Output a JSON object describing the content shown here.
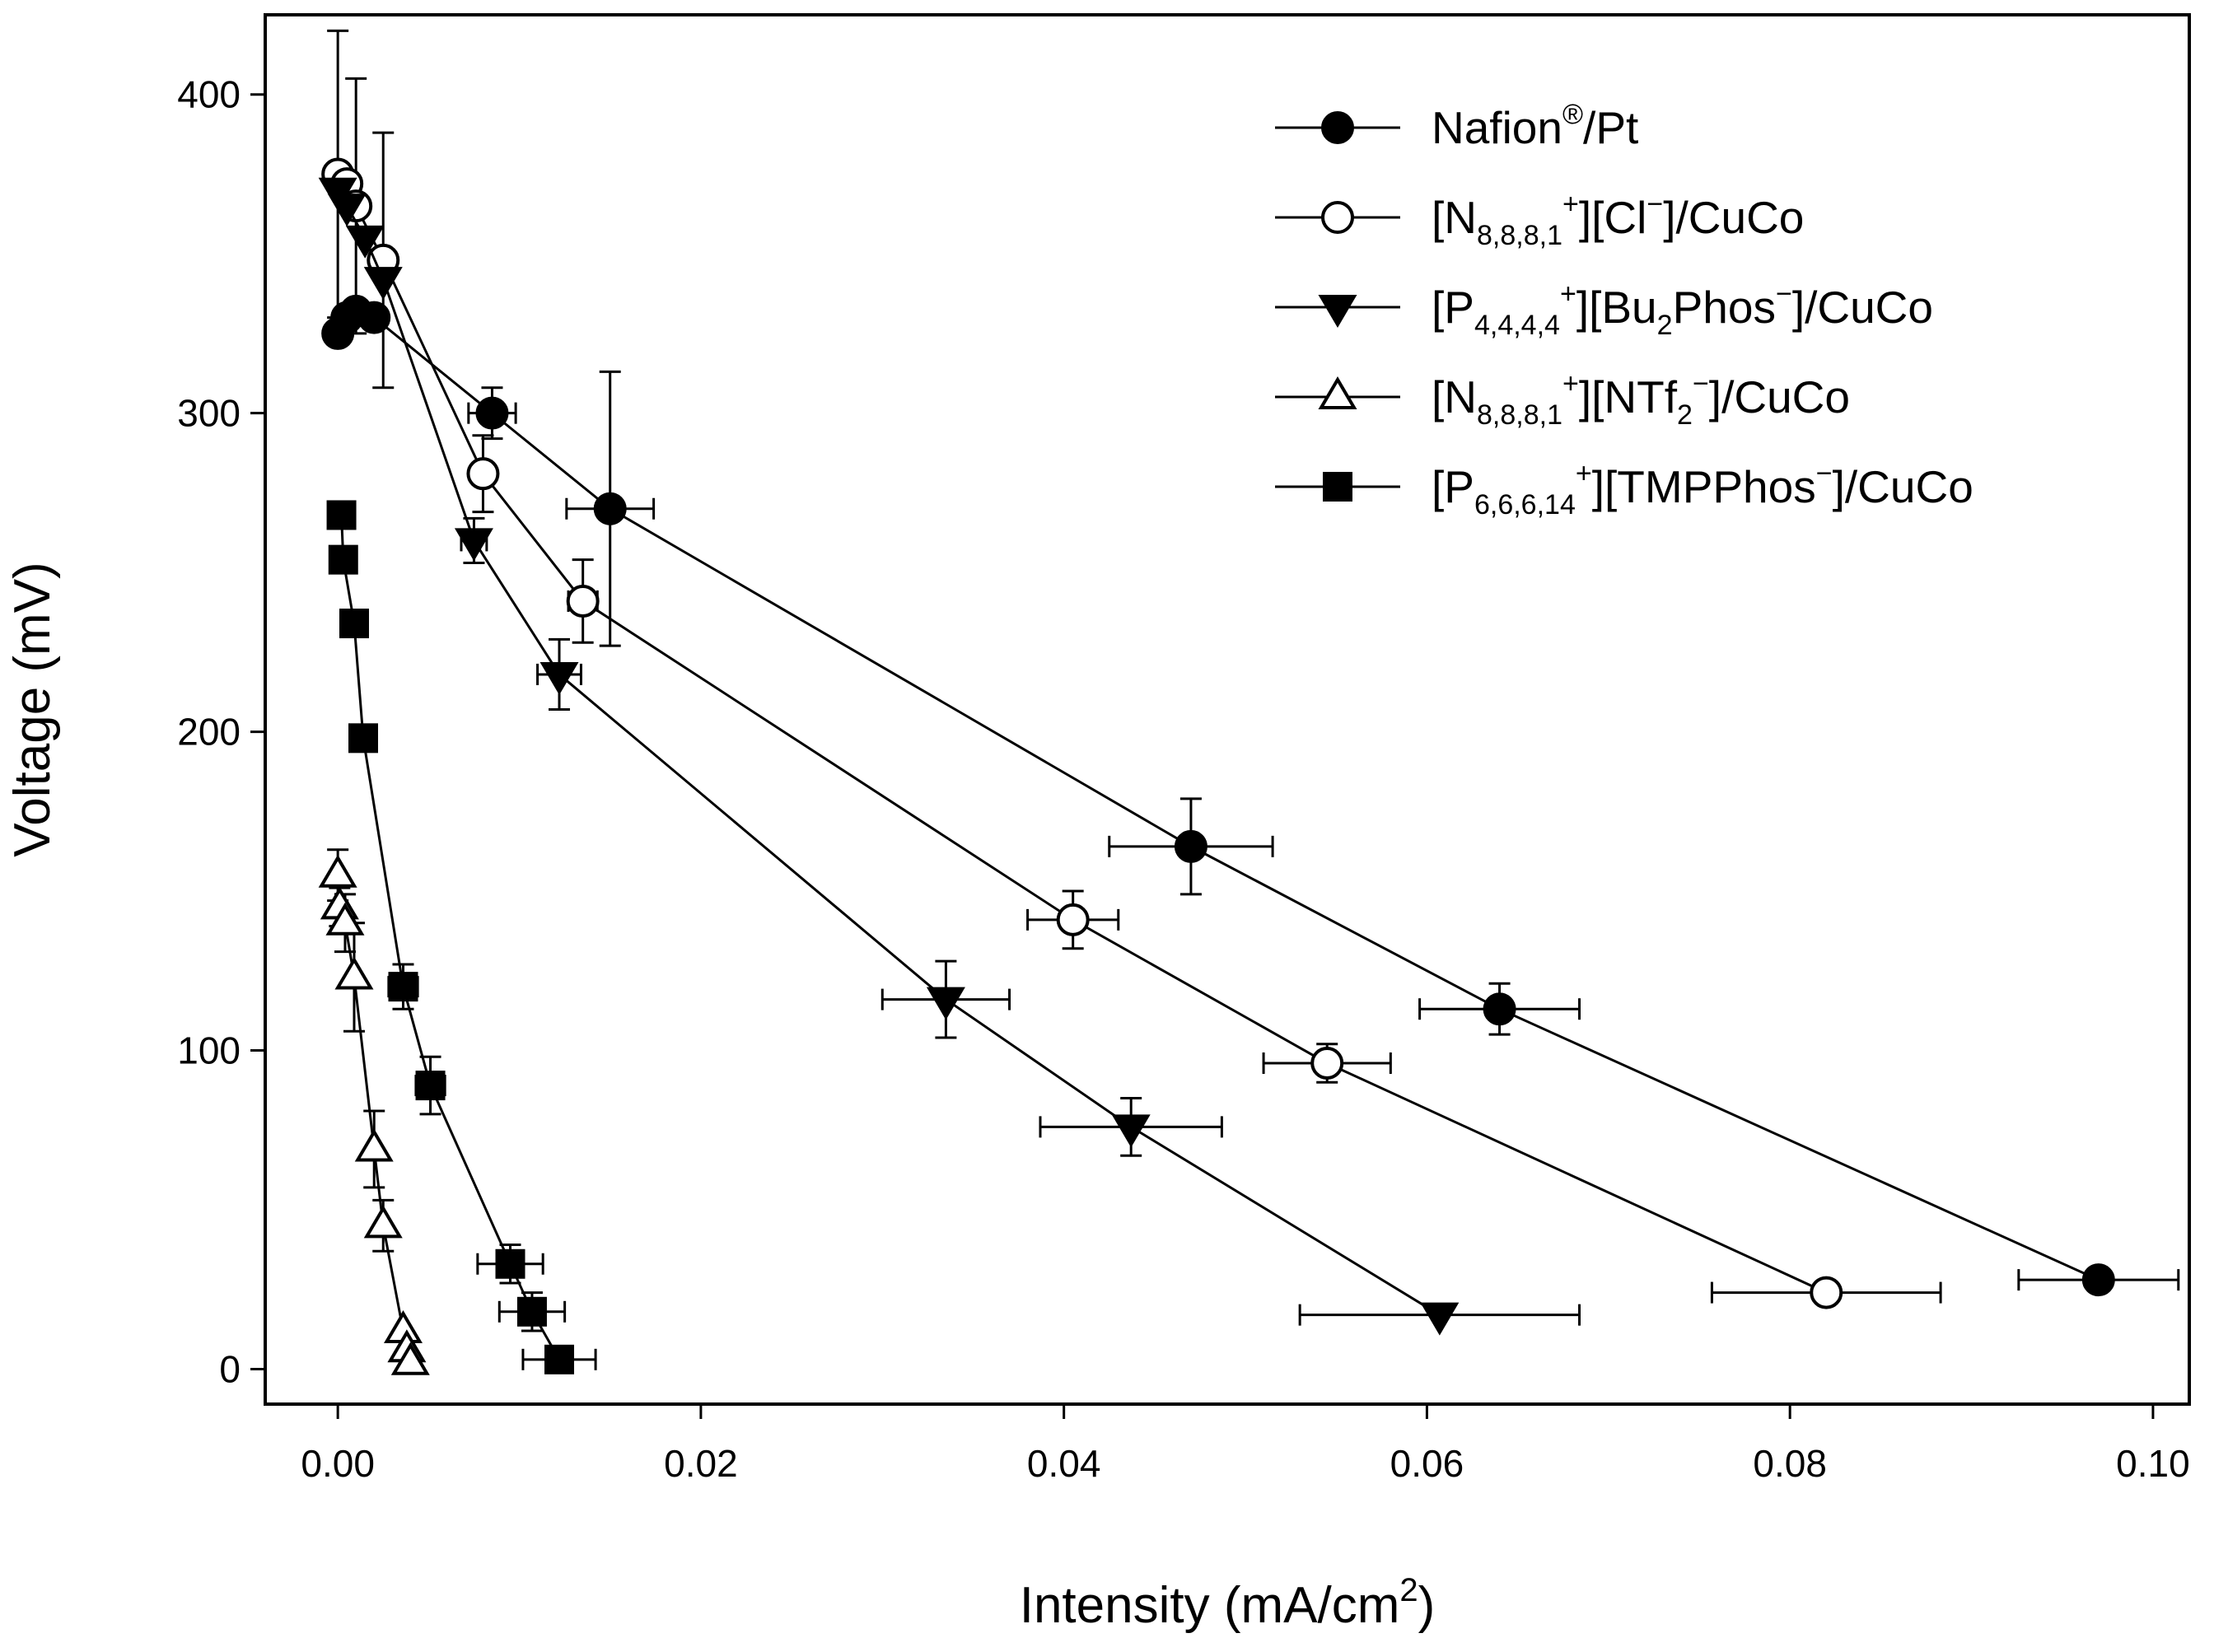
{
  "chart_data": {
    "type": "scatter",
    "xlabel": {
      "main": "Intensity (mA/cm",
      "sup": "2",
      "end": ")"
    },
    "ylabel": "Voltage (mV)",
    "xlim": [
      -0.004,
      0.102
    ],
    "ylim": [
      -11,
      425
    ],
    "xticks": [
      0.0,
      0.02,
      0.04,
      0.06,
      0.08,
      0.1
    ],
    "xtick_labels": [
      "0.00",
      "0.02",
      "0.04",
      "0.06",
      "0.08",
      "0.10"
    ],
    "yticks": [
      0,
      100,
      200,
      300,
      400
    ],
    "ytick_labels": [
      "0",
      "100",
      "200",
      "300",
      "400"
    ],
    "grid": false,
    "legend_position": "top-right",
    "series": [
      {
        "name": "Nafion®/Pt",
        "legend": [
          {
            "t": "Nafion"
          },
          {
            "t": "®",
            "s": "sup"
          },
          {
            "t": "/Pt"
          }
        ],
        "marker": "circle-filled",
        "points": [
          [
            0.0,
            325,
            0,
            0
          ],
          [
            0.0005,
            330,
            0,
            0
          ],
          [
            0.001,
            332,
            0,
            0
          ],
          [
            0.002,
            330,
            0,
            0
          ],
          [
            0.0085,
            300,
            0.0013,
            8
          ],
          [
            0.015,
            270,
            0.0024,
            43
          ],
          [
            0.047,
            164,
            0.0045,
            15
          ],
          [
            0.064,
            113,
            0.0044,
            8
          ],
          [
            0.097,
            28,
            0.0044,
            0
          ]
        ]
      },
      {
        "name": "[N8,8,8,1+][Cl−]/CuCo",
        "legend": [
          {
            "t": "[N"
          },
          {
            "t": "8,8,8,1",
            "s": "sub"
          },
          {
            "t": "+",
            "s": "sup"
          },
          {
            "t": "][Cl"
          },
          {
            "t": "−",
            "s": "sup"
          },
          {
            "t": "]/CuCo"
          }
        ],
        "marker": "circle-open",
        "points": [
          [
            0.0,
            375,
            0,
            45
          ],
          [
            0.0005,
            372,
            0,
            0
          ],
          [
            0.001,
            365,
            0,
            40
          ],
          [
            0.0025,
            348,
            0,
            40
          ],
          [
            0.008,
            281,
            0,
            12
          ],
          [
            0.0135,
            241,
            0.0008,
            13
          ],
          [
            0.0405,
            141,
            0.0025,
            9
          ],
          [
            0.0545,
            96,
            0.0035,
            6
          ],
          [
            0.082,
            24,
            0.0063,
            0
          ]
        ]
      },
      {
        "name": "[P4,4,4,4+][Bu2Phos−]/CuCo",
        "legend": [
          {
            "t": "[P"
          },
          {
            "t": "4,4,4,4",
            "s": "sub"
          },
          {
            "t": "+",
            "s": "sup"
          },
          {
            "t": "][Bu"
          },
          {
            "t": "2",
            "s": "sub"
          },
          {
            "t": "Phos"
          },
          {
            "t": "−",
            "s": "sup"
          },
          {
            "t": "]/CuCo"
          }
        ],
        "marker": "triangle-down-filled",
        "points": [
          [
            0.0,
            370,
            0,
            0
          ],
          [
            0.0005,
            365,
            0,
            0
          ],
          [
            0.0015,
            355,
            0,
            0
          ],
          [
            0.0025,
            342,
            0,
            0
          ],
          [
            0.0075,
            260,
            0.0007,
            7
          ],
          [
            0.0122,
            218,
            0.0012,
            11
          ],
          [
            0.0335,
            116,
            0.0035,
            12
          ],
          [
            0.0437,
            76,
            0.005,
            9
          ],
          [
            0.0607,
            17,
            0.0077,
            0
          ]
        ]
      },
      {
        "name": "[N8,8,8,1+][NTf2−]/CuCo",
        "legend": [
          {
            "t": "[N"
          },
          {
            "t": "8,8,8,1",
            "s": "sub"
          },
          {
            "t": "+",
            "s": "sup"
          },
          {
            "t": "][NTf"
          },
          {
            "t": "2",
            "s": "sub"
          },
          {
            "t": "−",
            "s": "sup"
          },
          {
            "t": "]/CuCo"
          }
        ],
        "marker": "triangle-up-open",
        "points": [
          [
            0.0,
            155,
            0,
            8
          ],
          [
            0.0001,
            145,
            0,
            6
          ],
          [
            0.0004,
            140,
            0,
            9
          ],
          [
            0.0009,
            123,
            0,
            17
          ],
          [
            0.002,
            69,
            0,
            12
          ],
          [
            0.0025,
            45,
            0,
            8
          ],
          [
            0.0036,
            12,
            0,
            0
          ],
          [
            0.0038,
            6,
            0,
            0
          ],
          [
            0.004,
            2,
            0,
            0
          ]
        ]
      },
      {
        "name": "[P6,6,6,14+][TMPPhos−]/CuCo",
        "legend": [
          {
            "t": "[P"
          },
          {
            "t": "6,6,6,14",
            "s": "sub"
          },
          {
            "t": "+",
            "s": "sup"
          },
          {
            "t": "][TMPPhos"
          },
          {
            "t": "−",
            "s": "sup"
          },
          {
            "t": "]/CuCo"
          }
        ],
        "marker": "square-filled",
        "points": [
          [
            0.0002,
            268,
            0,
            0
          ],
          [
            0.0003,
            254,
            0,
            0
          ],
          [
            0.0009,
            234,
            0,
            0
          ],
          [
            0.0014,
            198,
            0,
            0
          ],
          [
            0.0036,
            120,
            0.0008,
            7
          ],
          [
            0.0051,
            89,
            0.0008,
            9
          ],
          [
            0.0095,
            33,
            0.0018,
            6
          ],
          [
            0.0107,
            18,
            0.0018,
            6
          ],
          [
            0.0122,
            3,
            0.002,
            0
          ]
        ]
      }
    ]
  }
}
